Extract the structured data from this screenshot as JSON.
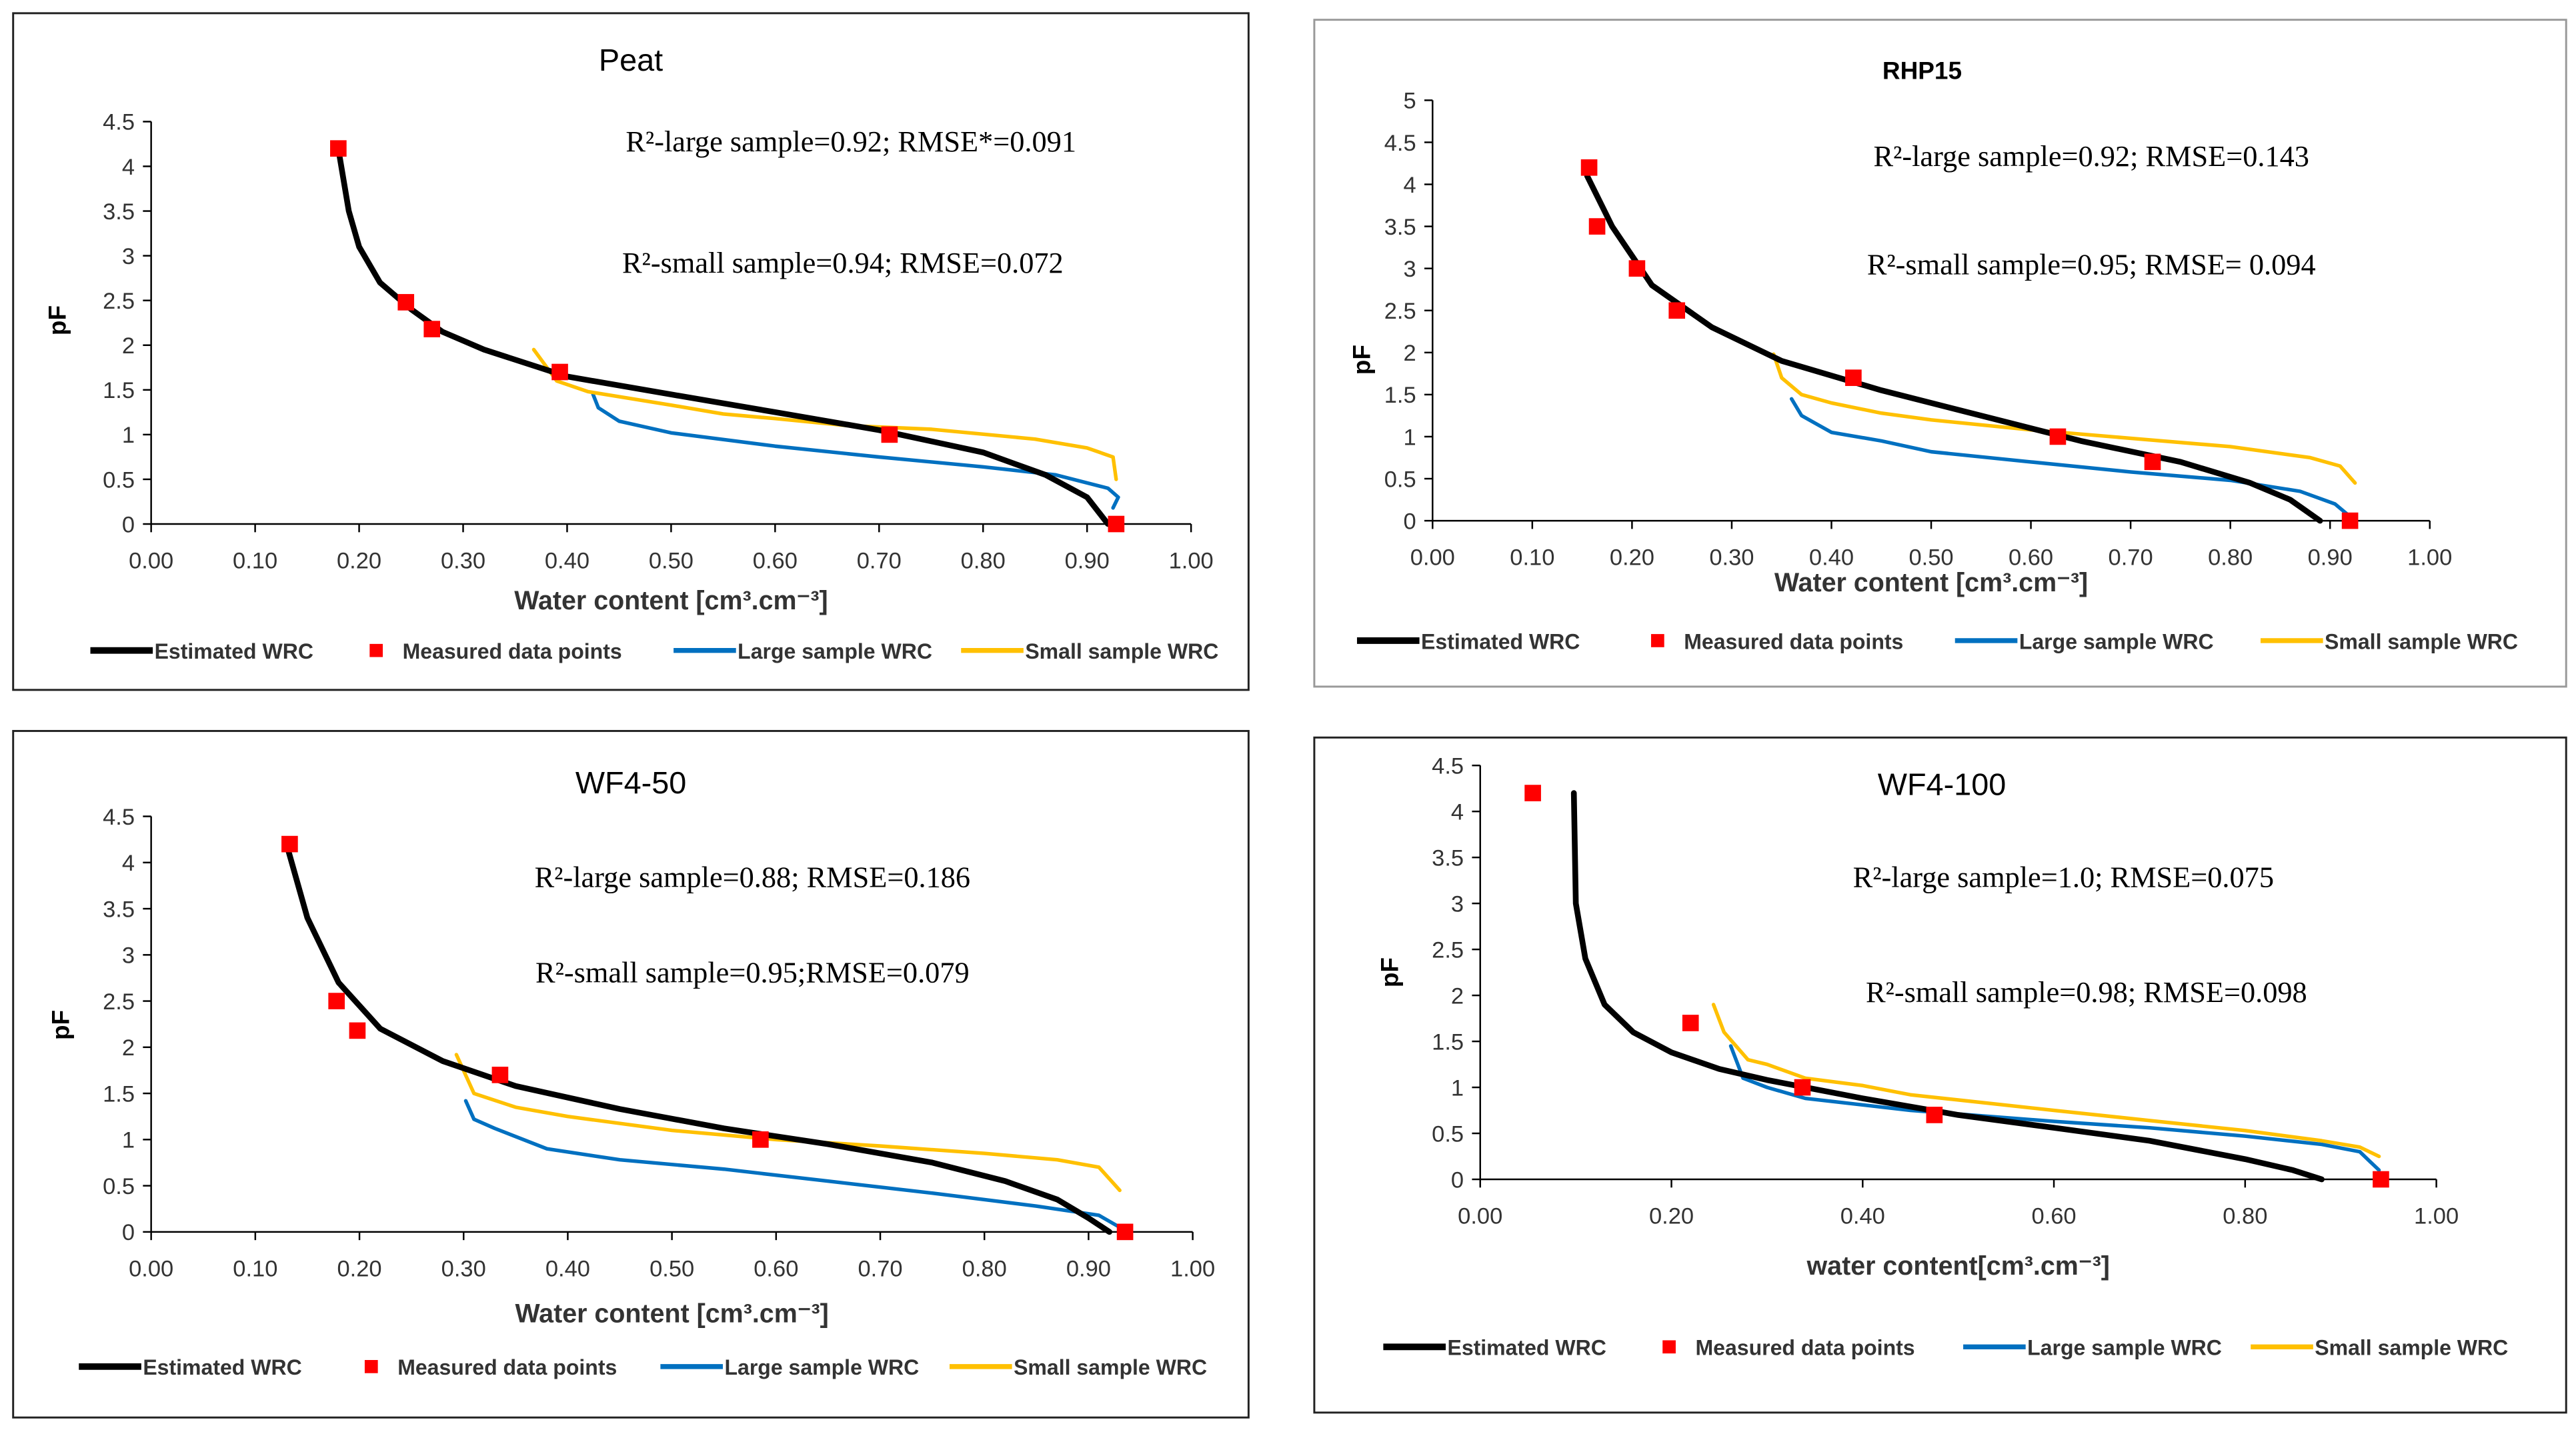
{
  "legend": {
    "estimated": "Estimated WRC",
    "measured": "Measured data points",
    "large": "Large sample WRC",
    "small": "Small sample WRC"
  },
  "colors": {
    "estimated": "#000000",
    "measured": "#ff0000",
    "large": "#0070c0",
    "small": "#ffc000"
  },
  "chart_data": [
    {
      "type": "line",
      "title": "Peat",
      "xlabel": "Water content [cm³.cm⁻³]",
      "ylabel": "pF",
      "xlim": [
        0,
        1
      ],
      "ylim": [
        0,
        4.5
      ],
      "xticks": [
        "0.00",
        "0.10",
        "0.20",
        "0.30",
        "0.40",
        "0.50",
        "0.60",
        "0.70",
        "0.80",
        "0.90",
        "1.00"
      ],
      "yticks": [
        "0",
        "0.5",
        "1",
        "1.5",
        "2",
        "2.5",
        "3",
        "3.5",
        "4",
        "4.5"
      ],
      "annotations": [
        "R²-large sample=0.92; RMSE*=0.091",
        "R²-small sample=0.94; RMSE=0.072"
      ],
      "series": {
        "estimated": [
          [
            0.18,
            4.2
          ],
          [
            0.19,
            3.5
          ],
          [
            0.2,
            3.1
          ],
          [
            0.22,
            2.7
          ],
          [
            0.25,
            2.4
          ],
          [
            0.28,
            2.15
          ],
          [
            0.32,
            1.95
          ],
          [
            0.4,
            1.65
          ],
          [
            0.5,
            1.45
          ],
          [
            0.6,
            1.25
          ],
          [
            0.7,
            1.05
          ],
          [
            0.8,
            0.8
          ],
          [
            0.86,
            0.55
          ],
          [
            0.9,
            0.3
          ],
          [
            0.92,
            0
          ]
        ],
        "measured": [
          [
            0.18,
            4.2
          ],
          [
            0.245,
            2.48
          ],
          [
            0.27,
            2.18
          ],
          [
            0.393,
            1.7
          ],
          [
            0.71,
            1.0
          ],
          [
            0.928,
            0
          ]
        ],
        "large": [
          [
            0.425,
            1.45
          ],
          [
            0.43,
            1.3
          ],
          [
            0.45,
            1.15
          ],
          [
            0.5,
            1.02
          ],
          [
            0.6,
            0.87
          ],
          [
            0.7,
            0.75
          ],
          [
            0.8,
            0.64
          ],
          [
            0.87,
            0.55
          ],
          [
            0.92,
            0.4
          ],
          [
            0.93,
            0.3
          ],
          [
            0.925,
            0.18
          ]
        ],
        "small": [
          [
            0.368,
            1.95
          ],
          [
            0.39,
            1.6
          ],
          [
            0.42,
            1.48
          ],
          [
            0.5,
            1.33
          ],
          [
            0.55,
            1.23
          ],
          [
            0.6,
            1.18
          ],
          [
            0.67,
            1.1
          ],
          [
            0.75,
            1.06
          ],
          [
            0.85,
            0.95
          ],
          [
            0.9,
            0.85
          ],
          [
            0.925,
            0.75
          ],
          [
            0.928,
            0.5
          ]
        ]
      }
    },
    {
      "type": "line",
      "title": "RHP15",
      "xlabel": "Water content [cm³.cm⁻³]",
      "ylabel": "pF",
      "xlim": [
        0,
        1
      ],
      "ylim": [
        0,
        5
      ],
      "xticks": [
        "0.00",
        "0.10",
        "0.20",
        "0.30",
        "0.40",
        "0.50",
        "0.60",
        "0.70",
        "0.80",
        "0.90",
        "1.00"
      ],
      "yticks": [
        "0",
        "0.5",
        "1",
        "1.5",
        "2",
        "2.5",
        "3",
        "3.5",
        "4",
        "4.5",
        "5"
      ],
      "annotations": [
        "R²-large sample=0.92; RMSE=0.143",
        "R²-small sample=0.95; RMSE= 0.094"
      ],
      "series": {
        "estimated": [
          [
            0.155,
            4.1
          ],
          [
            0.18,
            3.5
          ],
          [
            0.22,
            2.8
          ],
          [
            0.28,
            2.3
          ],
          [
            0.35,
            1.9
          ],
          [
            0.45,
            1.55
          ],
          [
            0.55,
            1.25
          ],
          [
            0.65,
            0.95
          ],
          [
            0.75,
            0.7
          ],
          [
            0.82,
            0.45
          ],
          [
            0.86,
            0.25
          ],
          [
            0.89,
            0
          ]
        ],
        "measured": [
          [
            0.157,
            4.2
          ],
          [
            0.165,
            3.5
          ],
          [
            0.205,
            3.0
          ],
          [
            0.245,
            2.5
          ],
          [
            0.422,
            1.7
          ],
          [
            0.627,
            1.0
          ],
          [
            0.722,
            0.7
          ],
          [
            0.92,
            0
          ]
        ],
        "large": [
          [
            0.36,
            1.45
          ],
          [
            0.37,
            1.25
          ],
          [
            0.4,
            1.05
          ],
          [
            0.45,
            0.95
          ],
          [
            0.5,
            0.82
          ],
          [
            0.6,
            0.7
          ],
          [
            0.7,
            0.58
          ],
          [
            0.8,
            0.48
          ],
          [
            0.87,
            0.35
          ],
          [
            0.905,
            0.2
          ],
          [
            0.92,
            0.05
          ]
        ],
        "small": [
          [
            0.342,
            1.98
          ],
          [
            0.35,
            1.7
          ],
          [
            0.37,
            1.5
          ],
          [
            0.4,
            1.4
          ],
          [
            0.45,
            1.28
          ],
          [
            0.5,
            1.2
          ],
          [
            0.6,
            1.08
          ],
          [
            0.7,
            0.98
          ],
          [
            0.8,
            0.88
          ],
          [
            0.88,
            0.75
          ],
          [
            0.91,
            0.65
          ],
          [
            0.925,
            0.45
          ]
        ]
      }
    },
    {
      "type": "line",
      "title": "WF4-50",
      "xlabel": "Water content [cm³.cm⁻³]",
      "ylabel": "pF",
      "xlim": [
        0,
        1
      ],
      "ylim": [
        0,
        4.5
      ],
      "xticks": [
        "0.00",
        "0.10",
        "0.20",
        "0.30",
        "0.40",
        "0.50",
        "0.60",
        "0.70",
        "0.80",
        "0.90",
        "1.00"
      ],
      "yticks": [
        "0",
        "0.5",
        "1",
        "1.5",
        "2",
        "2.5",
        "3",
        "3.5",
        "4",
        "4.5"
      ],
      "annotations": [
        "R²-large sample=0.88; RMSE=0.186",
        "R²-small sample=0.95;RMSE=0.079"
      ],
      "series": {
        "estimated": [
          [
            0.13,
            4.2
          ],
          [
            0.15,
            3.4
          ],
          [
            0.18,
            2.7
          ],
          [
            0.22,
            2.2
          ],
          [
            0.28,
            1.85
          ],
          [
            0.35,
            1.58
          ],
          [
            0.45,
            1.33
          ],
          [
            0.55,
            1.12
          ],
          [
            0.65,
            0.95
          ],
          [
            0.75,
            0.75
          ],
          [
            0.82,
            0.55
          ],
          [
            0.87,
            0.35
          ],
          [
            0.9,
            0.15
          ],
          [
            0.92,
            0
          ]
        ],
        "measured": [
          [
            0.133,
            4.2
          ],
          [
            0.178,
            2.5
          ],
          [
            0.198,
            2.18
          ],
          [
            0.335,
            1.7
          ],
          [
            0.585,
            1.0
          ],
          [
            0.935,
            0
          ]
        ],
        "large": [
          [
            0.302,
            1.42
          ],
          [
            0.31,
            1.22
          ],
          [
            0.33,
            1.12
          ],
          [
            0.38,
            0.9
          ],
          [
            0.45,
            0.78
          ],
          [
            0.55,
            0.68
          ],
          [
            0.65,
            0.55
          ],
          [
            0.75,
            0.42
          ],
          [
            0.85,
            0.28
          ],
          [
            0.91,
            0.18
          ],
          [
            0.93,
            0.05
          ]
        ],
        "small": [
          [
            0.293,
            1.92
          ],
          [
            0.31,
            1.5
          ],
          [
            0.35,
            1.35
          ],
          [
            0.4,
            1.25
          ],
          [
            0.5,
            1.1
          ],
          [
            0.6,
            1.0
          ],
          [
            0.7,
            0.93
          ],
          [
            0.8,
            0.85
          ],
          [
            0.87,
            0.78
          ],
          [
            0.91,
            0.7
          ],
          [
            0.93,
            0.45
          ]
        ]
      }
    },
    {
      "type": "line",
      "title": "WF4-100",
      "xlabel": "water content[cm³.cm⁻³]",
      "ylabel": "pF",
      "xlim": [
        0,
        1
      ],
      "ylim": [
        0,
        4.5
      ],
      "xticks": [
        "0.00",
        "0.20",
        "0.40",
        "0.60",
        "0.80",
        "1.00"
      ],
      "yticks": [
        "0",
        "0.5",
        "1",
        "1.5",
        "2",
        "2.5",
        "3",
        "3.5",
        "4",
        "4.5"
      ],
      "annotations": [
        "R²-large sample=1.0; RMSE=0.075",
        "R²-small sample=0.98; RMSE=0.098"
      ],
      "series": {
        "estimated": [
          [
            0.098,
            4.2
          ],
          [
            0.1,
            3.0
          ],
          [
            0.11,
            2.4
          ],
          [
            0.13,
            1.9
          ],
          [
            0.16,
            1.6
          ],
          [
            0.2,
            1.38
          ],
          [
            0.25,
            1.2
          ],
          [
            0.3,
            1.08
          ],
          [
            0.4,
            0.88
          ],
          [
            0.5,
            0.7
          ],
          [
            0.6,
            0.56
          ],
          [
            0.7,
            0.42
          ],
          [
            0.8,
            0.22
          ],
          [
            0.85,
            0.1
          ],
          [
            0.88,
            0
          ]
        ],
        "measured": [
          [
            0.055,
            4.2
          ],
          [
            0.22,
            1.7
          ],
          [
            0.337,
            1.0
          ],
          [
            0.475,
            0.7
          ],
          [
            0.942,
            0
          ]
        ],
        "large": [
          [
            0.262,
            1.45
          ],
          [
            0.275,
            1.1
          ],
          [
            0.3,
            1.0
          ],
          [
            0.34,
            0.88
          ],
          [
            0.45,
            0.75
          ],
          [
            0.6,
            0.63
          ],
          [
            0.7,
            0.56
          ],
          [
            0.8,
            0.47
          ],
          [
            0.88,
            0.38
          ],
          [
            0.92,
            0.3
          ],
          [
            0.94,
            0.1
          ]
        ],
        "small": [
          [
            0.244,
            1.9
          ],
          [
            0.255,
            1.6
          ],
          [
            0.28,
            1.3
          ],
          [
            0.3,
            1.25
          ],
          [
            0.34,
            1.1
          ],
          [
            0.4,
            1.02
          ],
          [
            0.45,
            0.92
          ],
          [
            0.6,
            0.75
          ],
          [
            0.7,
            0.64
          ],
          [
            0.8,
            0.53
          ],
          [
            0.88,
            0.42
          ],
          [
            0.92,
            0.35
          ],
          [
            0.94,
            0.25
          ]
        ]
      }
    }
  ]
}
